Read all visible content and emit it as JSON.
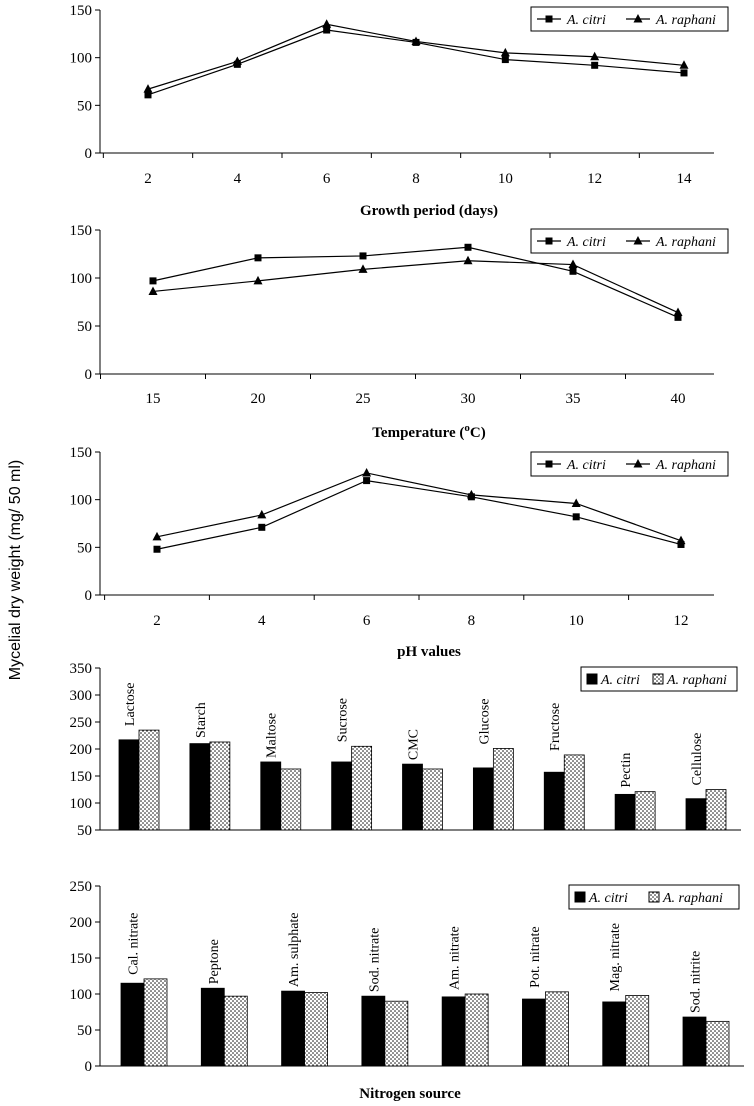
{
  "shared_ylabel": "Mycelial dry weight (mg/ 50 ml)",
  "chart_data": [
    {
      "type": "line",
      "xlabel": "Growth period (days)",
      "x": [
        2,
        4,
        6,
        8,
        10,
        12,
        14
      ],
      "ylim": [
        0,
        150
      ],
      "yticks": [
        0,
        50,
        100,
        150
      ],
      "legend_position": "top-right",
      "grid": false,
      "series": [
        {
          "name": "A. citri",
          "marker": "square",
          "values": [
            61,
            93,
            129,
            116,
            98,
            92,
            84
          ]
        },
        {
          "name": "A. raphani",
          "marker": "triangle",
          "values": [
            67,
            96,
            135,
            117,
            105,
            101,
            92
          ]
        }
      ]
    },
    {
      "type": "line",
      "xlabel": "Temperature (",
      "xlabel_sup": "o",
      "xlabel_suffix": "C)",
      "x": [
        15,
        20,
        25,
        30,
        35,
        40
      ],
      "ylim": [
        0,
        150
      ],
      "yticks": [
        0,
        50,
        100,
        150
      ],
      "legend_position": "top-right",
      "grid": false,
      "series": [
        {
          "name": "A. citri",
          "marker": "square",
          "values": [
            97,
            121,
            123,
            132,
            107,
            59
          ]
        },
        {
          "name": "A. raphani",
          "marker": "triangle",
          "values": [
            86,
            97,
            109,
            118,
            114,
            64
          ]
        }
      ]
    },
    {
      "type": "line",
      "xlabel": "pH values",
      "x": [
        2,
        4,
        6,
        8,
        10,
        12
      ],
      "ylim": [
        0,
        150
      ],
      "yticks": [
        0,
        50,
        100,
        150
      ],
      "legend_position": "top-right",
      "grid": false,
      "series": [
        {
          "name": "A. citri",
          "marker": "square",
          "values": [
            48,
            71,
            120,
            103,
            82,
            53
          ]
        },
        {
          "name": "A. raphani",
          "marker": "triangle",
          "values": [
            61,
            84,
            128,
            105,
            96,
            57
          ]
        }
      ]
    },
    {
      "type": "bar",
      "xlabel": "",
      "categories": [
        "Lactose",
        "Starch",
        "Maltose",
        "Sucrose",
        "CMC",
        "Glucose",
        "Fructose",
        "Pectin",
        "Cellulose"
      ],
      "ylim": [
        50,
        350
      ],
      "yticks": [
        50,
        100,
        150,
        200,
        250,
        300,
        350
      ],
      "legend_position": "top-right",
      "grid": false,
      "series": [
        {
          "name": "A. citri",
          "fill": "solid",
          "values": [
            217,
            210,
            176,
            176,
            172,
            165,
            157,
            116,
            108
          ]
        },
        {
          "name": "A. raphani",
          "fill": "dotted",
          "values": [
            235,
            213,
            163,
            205,
            163,
            201,
            189,
            121,
            125
          ]
        }
      ]
    },
    {
      "type": "bar",
      "xlabel": "Nitrogen source",
      "categories": [
        "Cal. nitrate",
        "Peptone",
        "Am. sulphate",
        "Sod. nitrate",
        "Am. nitrate",
        "Pot. nitrate",
        "Mag. nitrate",
        "Sod. nitrite"
      ],
      "ylim": [
        0,
        250
      ],
      "yticks": [
        0,
        50,
        100,
        150,
        200,
        250
      ],
      "legend_position": "top-right",
      "grid": false,
      "series": [
        {
          "name": "A. citri",
          "fill": "solid",
          "values": [
            115,
            108,
            104,
            97,
            96,
            93,
            89,
            68
          ]
        },
        {
          "name": "A. raphani",
          "fill": "dotted",
          "values": [
            121,
            97,
            102,
            90,
            100,
            103,
            98,
            62
          ]
        }
      ]
    }
  ]
}
